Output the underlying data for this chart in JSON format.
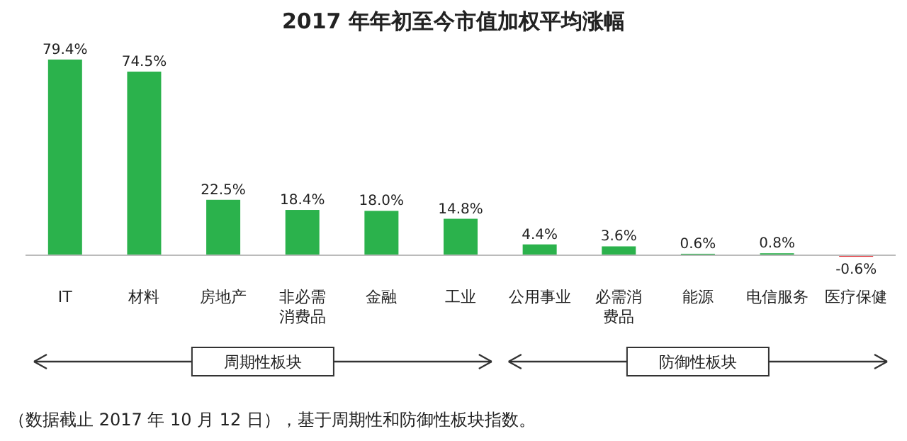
{
  "chart_data": {
    "type": "bar",
    "title": "2017 年年初至今市值加权平均涨幅",
    "relative": false,
    "categories": [
      "IT",
      "材料",
      "房地产",
      "非必需消费品",
      "金融",
      "工业",
      "公用事业",
      "必需消费品",
      "能源",
      "电信服务",
      "医疗保健"
    ],
    "values": [
      79.4,
      74.5,
      22.5,
      18.4,
      18.0,
      14.8,
      4.4,
      3.6,
      0.6,
      0.8,
      -0.6
    ],
    "value_labels": [
      "79.4%",
      "74.5%",
      "22.5%",
      "18.4%",
      "18.0%",
      "14.8%",
      "4.4%",
      "3.6%",
      "0.6%",
      "0.8%",
      "-0.6%"
    ],
    "colors": [
      "#2bb24c",
      "#2bb24c",
      "#2bb24c",
      "#2bb24c",
      "#2bb24c",
      "#2bb24c",
      "#2bb24c",
      "#2bb24c",
      "#2bb24c",
      "#2bb24c",
      "#e0282e"
    ],
    "annotations": [
      "周期性板块",
      "防御性板块",
      "（数据截止 2017 年 10 月 12 日），基于周期性和防御性板块指数。"
    ]
  }
}
